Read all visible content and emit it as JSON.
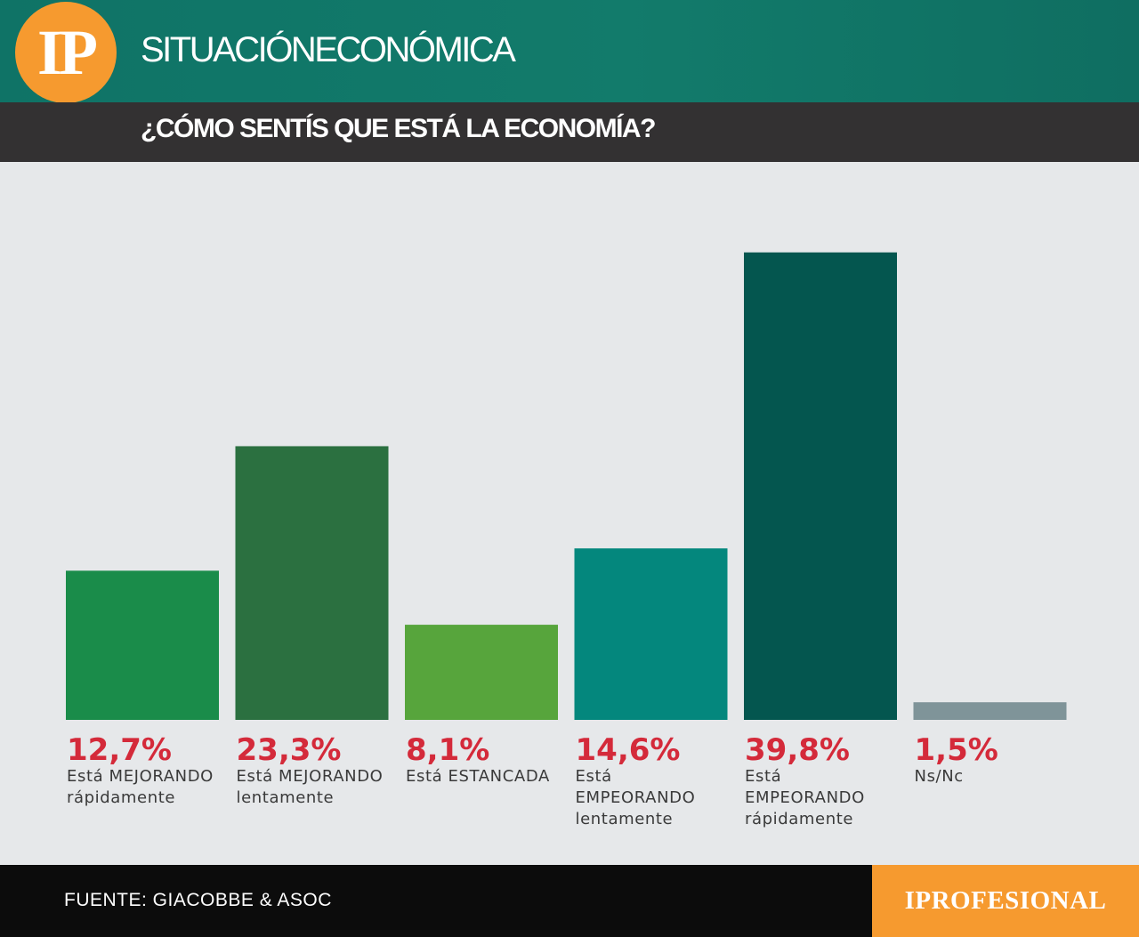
{
  "header": {
    "logo_text": "IP",
    "section_title": "SITUACIÓNECONÓMICA",
    "question": "¿CÓMO SENTÍS QUE ESTÁ LA ECONOMÍA?"
  },
  "footer": {
    "source": "FUENTE: GIACOBBE & ASOC",
    "brand": "IPROFESIONAL"
  },
  "colors": {
    "header_teal": "#127b6b",
    "header_dark": "#333132",
    "accent_orange": "#f69a2f",
    "value_red": "#d42a3a",
    "background": "#e6e8ea"
  },
  "chart_data": {
    "type": "bar",
    "title": "¿CÓMO SENTÍS QUE ESTÁ LA ECONOMÍA?",
    "categories": [
      [
        "Está MEJORANDO",
        "rápidamente"
      ],
      [
        "Está MEJORANDO",
        "lentamente"
      ],
      [
        "Está ESTANCADA"
      ],
      [
        "Está",
        "EMPEORANDO",
        "lentamente"
      ],
      [
        "Está",
        "EMPEORANDO",
        "rápidamente"
      ],
      [
        "Ns/Nc"
      ]
    ],
    "values": [
      12.7,
      23.3,
      8.1,
      14.6,
      39.8,
      1.5
    ],
    "value_labels": [
      "12,7%",
      "23,3%",
      "8,1%",
      "14,6%",
      "39,8%",
      "1,5%"
    ],
    "bar_colors": [
      "#1a8c4a",
      "#2b7040",
      "#57a53c",
      "#04877d",
      "#04564f",
      "#7f9499"
    ],
    "xlabel": "",
    "ylabel": "",
    "grid": false,
    "legend": "none"
  }
}
